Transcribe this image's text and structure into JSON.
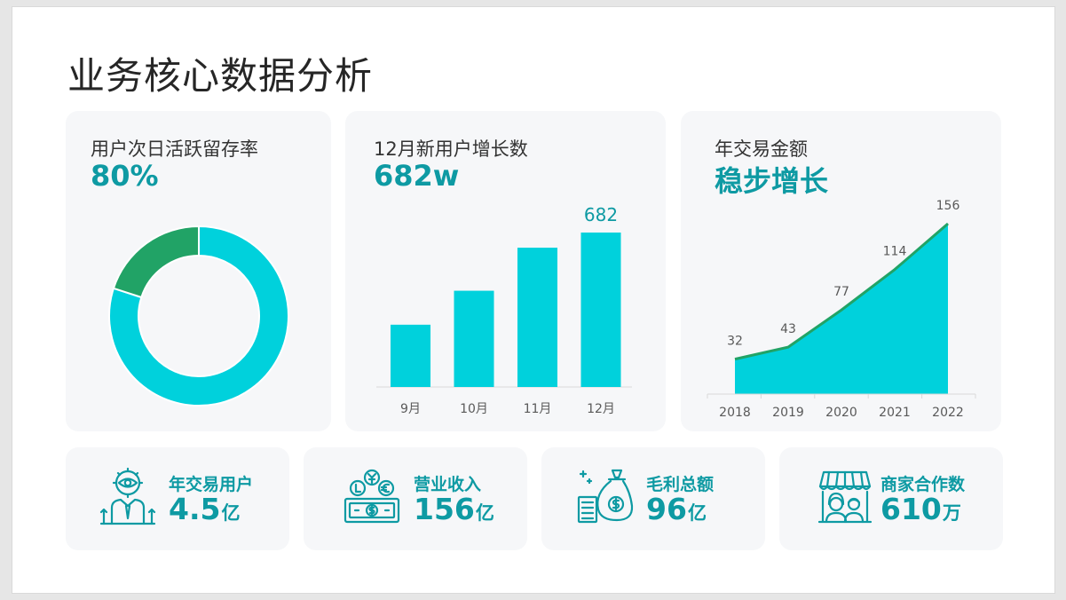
{
  "title": "业务核心数据分析",
  "colors": {
    "accent": "#0e9aa3",
    "cyan": "#00d1dc",
    "green": "#21a366",
    "card_bg": "#f6f7f9"
  },
  "retention": {
    "label": "用户次日活跃留存率",
    "value": "80%",
    "chart_data": {
      "type": "pie",
      "donut": true,
      "slices": [
        {
          "name": "",
          "value": 80,
          "color": "#00d1dc"
        },
        {
          "name": "",
          "value": 20,
          "color": "#21a366"
        }
      ]
    }
  },
  "new_users": {
    "label": "12月新用户增长数",
    "value": "682w",
    "chart_data": {
      "type": "bar",
      "categories": [
        "9月",
        "10月",
        "11月",
        "12月"
      ],
      "values": [
        275,
        425,
        615,
        682
      ],
      "data_labels": [
        "",
        "",
        "",
        "682"
      ],
      "color": "#00d1dc"
    }
  },
  "annual_tx": {
    "label": "年交易金额",
    "value": "稳步增长",
    "chart_data": {
      "type": "area",
      "categories": [
        "2018",
        "2019",
        "2020",
        "2021",
        "2022"
      ],
      "values": [
        32,
        43,
        77,
        114,
        156
      ],
      "fill": "#00d1dc",
      "line": "#21a366"
    }
  },
  "stats": [
    {
      "label": "年交易用户",
      "number": "4.5",
      "unit": "亿",
      "icon": "vision-person-icon"
    },
    {
      "label": "营业收入",
      "number": "156",
      "unit": "亿",
      "icon": "money-coins-icon"
    },
    {
      "label": "毛利总额",
      "number": "96",
      "unit": "亿",
      "icon": "money-bag-icon"
    },
    {
      "label": "商家合作数",
      "number": "610",
      "unit": "万",
      "icon": "storefront-icon"
    }
  ]
}
